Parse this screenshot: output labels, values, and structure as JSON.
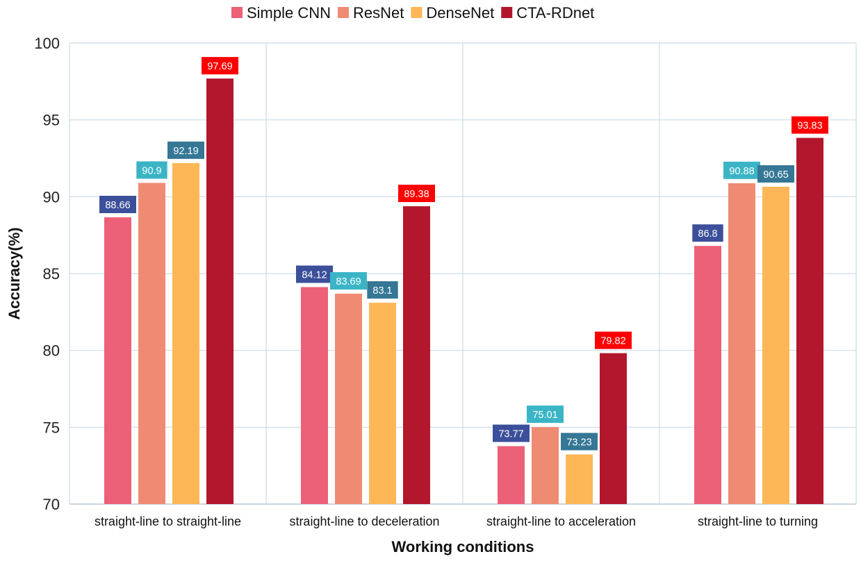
{
  "chart_data": {
    "type": "bar",
    "title": "",
    "xlabel": "Working conditions",
    "ylabel": "Accuracy(%)",
    "ylim": [
      70,
      100
    ],
    "yticks": [
      70,
      75,
      80,
      85,
      90,
      95,
      100
    ],
    "grid": true,
    "legend_position": "top-center",
    "categories": [
      "straight-line to straight-line",
      "straight-line to deceleration",
      "straight-line to acceleration",
      "straight-line to turning"
    ],
    "series": [
      {
        "name": "Simple CNN",
        "color": "#EC6177",
        "values": [
          88.66,
          84.12,
          73.77,
          86.8
        ]
      },
      {
        "name": "ResNet",
        "color": "#F08B73",
        "values": [
          90.9,
          83.69,
          75.01,
          90.88
        ]
      },
      {
        "name": "DenseNet",
        "color": "#FDB757",
        "values": [
          92.19,
          83.1,
          73.23,
          90.65
        ]
      },
      {
        "name": "CTA-RDnet",
        "color": "#B3172D",
        "values": [
          97.69,
          89.38,
          79.82,
          93.83
        ]
      }
    ],
    "data_labels": [
      {
        "series": 0,
        "category": 0,
        "text": "88.66",
        "bg": "#3B4F9A"
      },
      {
        "series": 1,
        "category": 0,
        "text": "90.9",
        "bg": "#3BB5C6"
      },
      {
        "series": 2,
        "category": 0,
        "text": "92.19",
        "bg": "#357795"
      },
      {
        "series": 3,
        "category": 0,
        "text": "97.69",
        "bg": "#FF0000"
      },
      {
        "series": 0,
        "category": 1,
        "text": "84.12",
        "bg": "#3B4F9A"
      },
      {
        "series": 1,
        "category": 1,
        "text": "83.69",
        "bg": "#3BB5C6"
      },
      {
        "series": 2,
        "category": 1,
        "text": "83.1",
        "bg": "#357795"
      },
      {
        "series": 3,
        "category": 1,
        "text": "89.38",
        "bg": "#FF0000"
      },
      {
        "series": 0,
        "category": 2,
        "text": "73.77",
        "bg": "#3B4F9A"
      },
      {
        "series": 1,
        "category": 2,
        "text": "75.01",
        "bg": "#3BB5C6"
      },
      {
        "series": 2,
        "category": 2,
        "text": "73.23",
        "bg": "#357795"
      },
      {
        "series": 3,
        "category": 2,
        "text": "79.82",
        "bg": "#FF0000"
      },
      {
        "series": 0,
        "category": 3,
        "text": "86.8",
        "bg": "#3B4F9A"
      },
      {
        "series": 1,
        "category": 3,
        "text": "90.88",
        "bg": "#3BB5C6"
      },
      {
        "series": 2,
        "category": 3,
        "text": "90.65",
        "bg": "#357795"
      },
      {
        "series": 3,
        "category": 3,
        "text": "93.83",
        "bg": "#FF0000"
      }
    ],
    "colors": {
      "grid": "#C9DCE6",
      "axis": "#B7CCD8"
    }
  }
}
